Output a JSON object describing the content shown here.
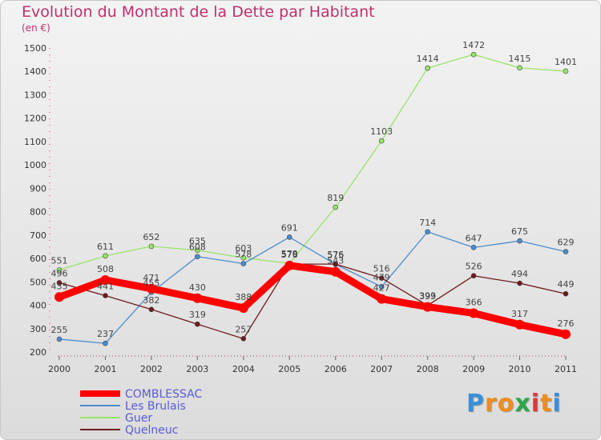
{
  "chart_data": {
    "type": "line",
    "title": "Evolution du Montant de la Dette par Habitant",
    "unit_label": "(en €)",
    "x": [
      "2000",
      "2001",
      "2002",
      "2003",
      "2004",
      "2005",
      "2006",
      "2007",
      "2008",
      "2009",
      "2010",
      "2011"
    ],
    "yticks": [
      200,
      300,
      400,
      500,
      600,
      700,
      800,
      900,
      1000,
      1100,
      1200,
      1300,
      1400,
      1500
    ],
    "ylim": [
      200,
      1500
    ],
    "grid": false,
    "legend_position": "bottom-left",
    "series": [
      {
        "name": "COMBLESSAC",
        "color": "#ff0000",
        "values": [
          435,
          508,
          471,
          430,
          388,
          570,
          543,
          427,
          393,
          366,
          317,
          276
        ]
      },
      {
        "name": "Les Brulais",
        "color": "#4d8ccc",
        "values": [
          255,
          237,
          455,
          608,
          578,
          691,
          575,
          479,
          714,
          647,
          675,
          629
        ]
      },
      {
        "name": "Guer",
        "color": "#99e46c",
        "values": [
          551,
          611,
          652,
          635,
          603,
          579,
          819,
          1103,
          1414,
          1472,
          1415,
          1401
        ]
      },
      {
        "name": "Quelneuc",
        "color": "#6e1a1f",
        "values": [
          496,
          441,
          382,
          319,
          257,
          576,
          576,
          516,
          399,
          526,
          494,
          449
        ]
      }
    ]
  },
  "logo": {
    "text": "Proxiti",
    "letters": [
      "P",
      "r",
      "o",
      "x",
      "i",
      "t",
      "i"
    ],
    "colors": [
      "#3a8fd8",
      "#f08c1e",
      "#f08c1e",
      "#2aa84a",
      "#d83a3a",
      "#f08c1e",
      "#3a8fd8"
    ]
  }
}
